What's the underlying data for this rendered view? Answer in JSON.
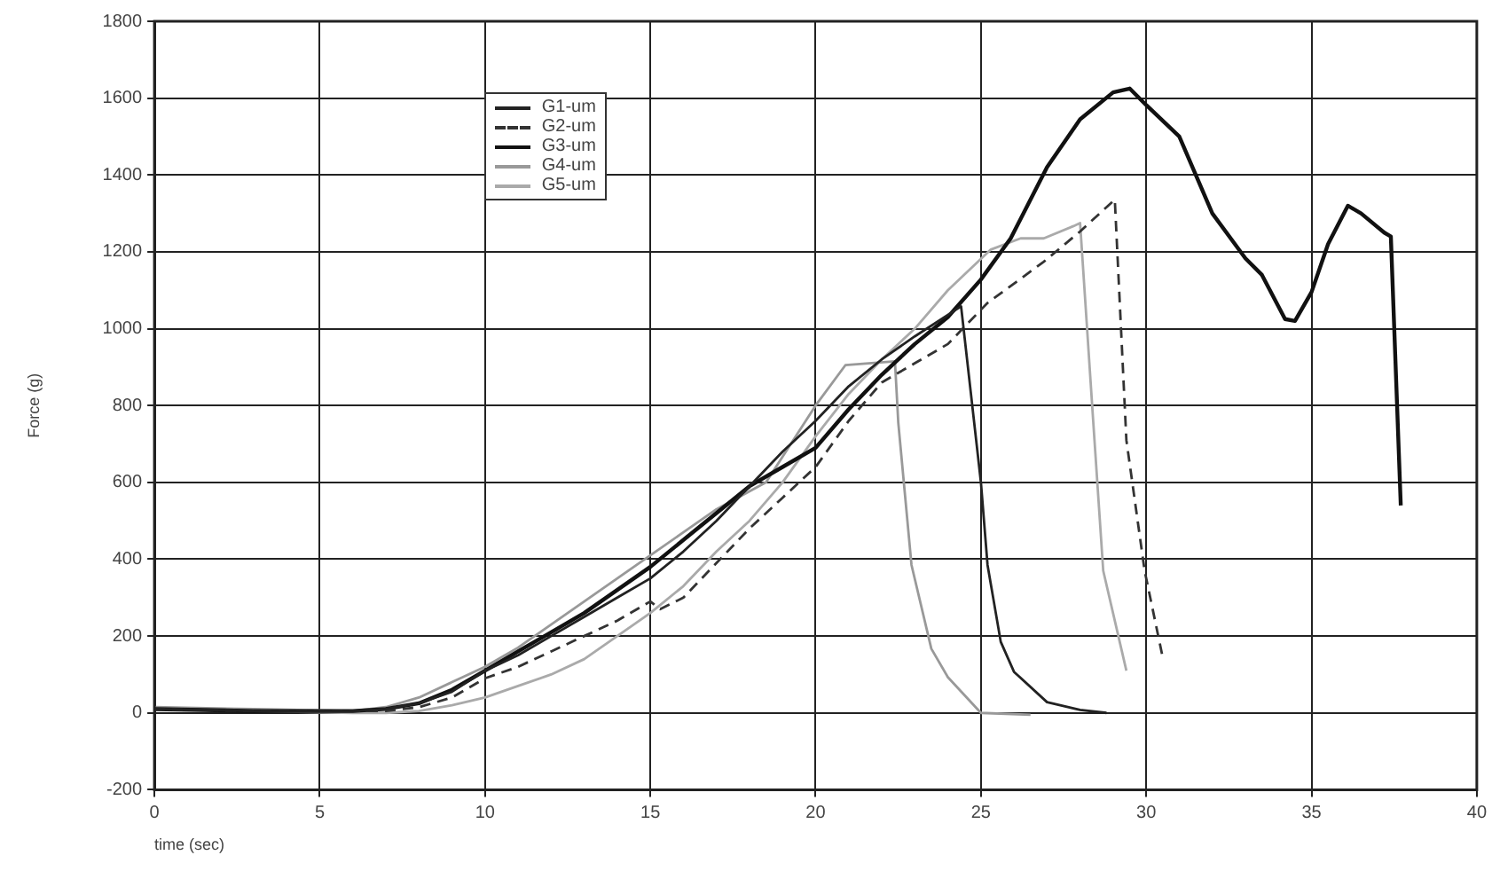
{
  "chart_data": {
    "type": "line",
    "xlabel": "time (sec)",
    "ylabel": "Force (g)",
    "xlim": [
      0,
      40
    ],
    "xticks": [
      0,
      5,
      10,
      15,
      20,
      25,
      30,
      35,
      40
    ],
    "ylim": [
      -200,
      1800
    ],
    "yticks": [
      -200,
      0,
      200,
      400,
      600,
      800,
      1000,
      1200,
      1400,
      1600,
      1800
    ],
    "grid": true,
    "legend": "top left",
    "marker": "none",
    "series": [
      {
        "name": "G1-um",
        "color": "#222222",
        "line_style": "solid",
        "x": [
          0,
          3,
          6,
          7,
          8,
          9,
          10,
          11,
          12,
          13,
          14,
          15,
          16,
          17,
          18,
          19,
          20,
          21,
          22,
          23,
          24.4,
          25,
          25.2,
          25.6,
          26,
          27,
          28,
          28.8
        ],
        "values": [
          10,
          5,
          5,
          10,
          25,
          55,
          110,
          150,
          200,
          250,
          300,
          350,
          420,
          500,
          590,
          680,
          760,
          850,
          920,
          980,
          1058,
          600,
          385,
          185,
          107,
          28,
          8,
          0
        ]
      },
      {
        "name": "G2-um",
        "color": "#333333",
        "line_style": "dashed",
        "x": [
          0,
          3,
          6,
          7,
          8,
          9,
          10,
          11,
          12,
          13,
          14,
          15,
          15.3,
          16,
          17,
          18,
          19,
          20,
          21,
          22,
          23,
          24,
          25.2,
          26.9,
          28,
          29.05,
          29.4,
          29.95,
          30.5
        ],
        "values": [
          10,
          5,
          5,
          5,
          15,
          40,
          90,
          120,
          160,
          200,
          240,
          290,
          270,
          300,
          390,
          480,
          560,
          640,
          760,
          860,
          910,
          960,
          1067,
          1174,
          1253,
          1336,
          710,
          371,
          144
        ]
      },
      {
        "name": "G3-um",
        "color": "#111111",
        "line_style": "solid",
        "x": [
          0,
          3,
          6,
          7,
          8,
          9,
          10,
          11,
          12,
          13,
          14,
          15,
          16,
          17,
          18,
          19,
          20,
          21,
          22,
          23,
          24,
          25,
          25.9,
          27,
          28,
          29,
          29.5,
          30,
          31,
          32,
          33,
          33.5,
          34.2,
          34.5,
          35,
          35.5,
          36.1,
          36.5,
          37.2,
          37.4,
          37.7
        ],
        "values": [
          10,
          5,
          5,
          10,
          25,
          60,
          110,
          160,
          210,
          260,
          320,
          380,
          450,
          520,
          590,
          640,
          690,
          790,
          880,
          960,
          1030,
          1128,
          1235,
          1420,
          1545,
          1615,
          1625,
          1582,
          1500,
          1300,
          1183,
          1140,
          1025,
          1020,
          1095,
          1220,
          1320,
          1300,
          1250,
          1240,
          540
        ]
      },
      {
        "name": "G4-um",
        "color": "#999999",
        "line_style": "solid",
        "x": [
          0,
          3,
          6,
          7,
          8,
          9,
          10,
          11,
          12,
          13,
          14,
          15,
          16,
          17,
          18.5,
          20,
          20.9,
          22.4,
          22.5,
          22.9,
          23.5,
          24,
          25,
          26.5
        ],
        "values": [
          15,
          10,
          5,
          15,
          40,
          80,
          120,
          170,
          230,
          290,
          350,
          410,
          470,
          530,
          600,
          800,
          905,
          915,
          756,
          385,
          167,
          93,
          0,
          -5
        ]
      },
      {
        "name": "G5-um",
        "color": "#aaaaaa",
        "line_style": "solid",
        "x": [
          0,
          3,
          6,
          7,
          8,
          9,
          10,
          11,
          12,
          13,
          14,
          15,
          16,
          17,
          18,
          19,
          20,
          21,
          22,
          23,
          24,
          25.3,
          26.2,
          26.9,
          27.8,
          28,
          28.4,
          28.7,
          29.4
        ],
        "values": [
          10,
          5,
          0,
          0,
          5,
          20,
          40,
          70,
          100,
          140,
          200,
          260,
          330,
          420,
          500,
          600,
          720,
          830,
          920,
          1000,
          1100,
          1206,
          1235,
          1235,
          1267,
          1275,
          755,
          370,
          110
        ]
      }
    ]
  }
}
